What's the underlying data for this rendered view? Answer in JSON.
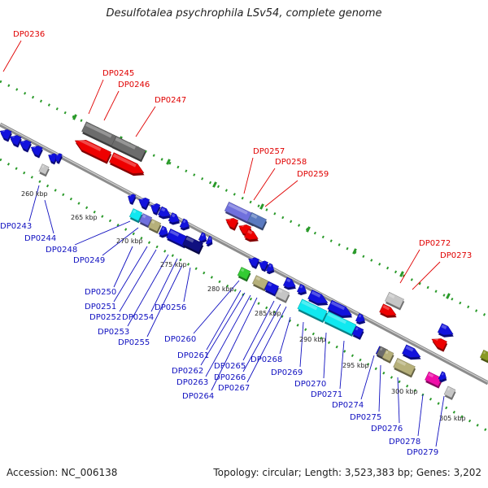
{
  "title": "Desulfotalea psychrophila LSv54, complete genome",
  "footer": {
    "accession": "Accession: NC_006138",
    "summary": "Topology: circular; Length: 3,523,383 bp; Genes: 3,202"
  },
  "colors": {
    "red_label": "#e00000",
    "blue_label": "#1010c0",
    "backbone": "#8c8c8c",
    "tick": "#2a9a2a",
    "gene_red": "#ee0000",
    "gene_blue": "#1212dd",
    "gene_gray": "#6c6c6c",
    "gene_lightgray": "#c6c6c6",
    "gene_cyan": "#10e8f0",
    "gene_olive": "#b6b07a",
    "gene_lavender": "#7070dd",
    "gene_navy": "#101080",
    "gene_green": "#33cc33",
    "gene_magenta": "#f00ca8",
    "gene_steel": "#5a7ac0"
  },
  "kbp_labels": [
    "260 kbp",
    "265 kbp",
    "270 kbp",
    "275 kbp",
    "280 kbp",
    "285 kbp",
    "290 kbp",
    "295 kbp",
    "300 kbp",
    "305 kbp"
  ],
  "genes_outer": [
    "DP0236",
    "DP0245",
    "DP0246",
    "DP0247",
    "DP0257",
    "DP0258",
    "DP0259",
    "DP0272",
    "DP0273"
  ],
  "genes_inner": [
    "DP0243",
    "DP0244",
    "DP0248",
    "DP0249",
    "DP0250",
    "DP0251",
    "DP0252",
    "DP0253",
    "DP0254",
    "DP0255",
    "DP0256",
    "DP0260",
    "DP0261",
    "DP0262",
    "DP0263",
    "DP0264",
    "DP0265",
    "DP0266",
    "DP0267",
    "DP0268",
    "DP0269",
    "DP0270",
    "DP0271",
    "DP0274",
    "DP0275",
    "DP0276",
    "DP0278",
    "DP0279"
  ]
}
